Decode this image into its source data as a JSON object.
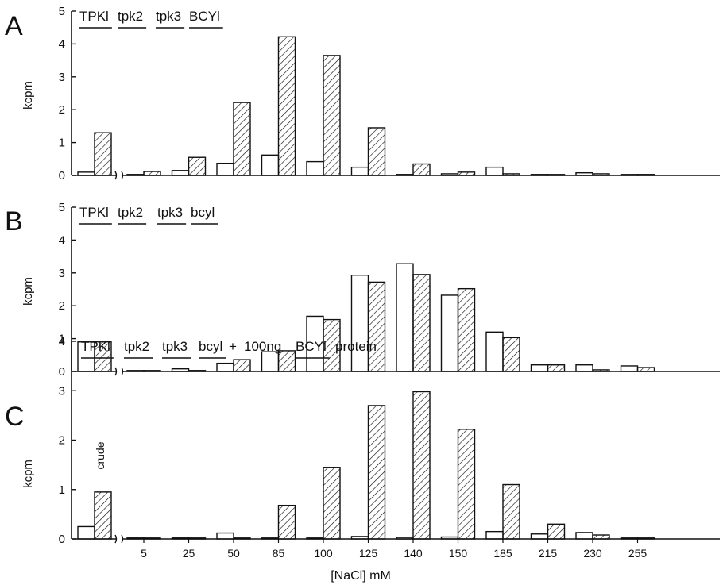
{
  "xlabel": "[NaCl] mM",
  "categories": [
    "crude",
    "5",
    "25",
    "50",
    "85",
    "100",
    "125",
    "140",
    "150",
    "185",
    "215",
    "230",
    "255"
  ],
  "chart_data": [
    {
      "type": "bar",
      "panel": "A",
      "title": "TPKl tpk2 tpk3 BCYl",
      "header": [
        {
          "text": "TPKl",
          "underlined": true
        },
        {
          "text": "tpk2",
          "underlined": true
        },
        {
          "text": "tpk3",
          "underlined": true
        },
        {
          "text": "BCYl",
          "underlined": true
        }
      ],
      "ylabel": "kcpm",
      "ylim": [
        0,
        5
      ],
      "yticks": [
        "0",
        "1",
        "2",
        "3",
        "4",
        "5"
      ],
      "categories": [
        "crude",
        "5",
        "25",
        "50",
        "85",
        "100",
        "125",
        "140",
        "150",
        "185",
        "215",
        "230",
        "255"
      ],
      "series": [
        {
          "style": "open",
          "values": [
            0.1,
            0.03,
            0.15,
            0.37,
            0.62,
            0.42,
            0.25,
            0.03,
            0.05,
            0.25,
            0.03,
            0.08,
            0.01
          ]
        },
        {
          "style": "hatched",
          "values": [
            1.3,
            0.12,
            0.55,
            2.22,
            4.22,
            3.65,
            1.45,
            0.35,
            0.1,
            0.05,
            0.01,
            0.05,
            0.03
          ]
        }
      ],
      "axis_break": "after crude",
      "annotations": []
    },
    {
      "type": "bar",
      "panel": "B",
      "title": "TPKl tpk2 tpk3 bcyl",
      "header": [
        {
          "text": "TPKl",
          "underlined": true
        },
        {
          "text": "tpk2",
          "underlined": true
        },
        {
          "text": "tpk3",
          "underlined": true
        },
        {
          "text": "bcyl",
          "underlined": true
        }
      ],
      "ylabel": "kcpm",
      "ylim": [
        0,
        5
      ],
      "yticks": [
        "0",
        "1",
        "2",
        "3",
        "4",
        "5"
      ],
      "categories": [
        "crude",
        "5",
        "25",
        "50",
        "85",
        "100",
        "125",
        "140",
        "150",
        "185",
        "215",
        "230",
        "255"
      ],
      "series": [
        {
          "style": "open",
          "values": [
            0.9,
            0.02,
            0.08,
            0.25,
            0.6,
            1.68,
            2.93,
            3.28,
            2.32,
            1.2,
            0.2,
            0.2,
            0.17
          ]
        },
        {
          "style": "hatched",
          "values": [
            0.9,
            0.02,
            0.03,
            0.36,
            0.63,
            1.58,
            2.72,
            2.95,
            2.52,
            1.03,
            0.2,
            0.05,
            0.12
          ]
        }
      ],
      "axis_break": "after crude",
      "annotations": []
    },
    {
      "type": "bar",
      "panel": "C",
      "title": "TPKl tpk2 tpk3 bcyl + 100ng BCYl protein",
      "header": [
        {
          "text": "TPKl",
          "underlined": true
        },
        {
          "text": "tpk2",
          "underlined": true
        },
        {
          "text": "tpk3",
          "underlined": true
        },
        {
          "text": "bcyl",
          "underlined": true
        },
        {
          "text": "+",
          "underlined": false
        },
        {
          "text": "100ng",
          "underlined": false
        },
        {
          "text": "BCYl",
          "underlined": true
        },
        {
          "text": "protein",
          "underlined": false
        }
      ],
      "ylabel": "kcpm",
      "ylim": [
        0,
        4
      ],
      "yticks": [
        "0",
        "1",
        "2",
        "3",
        "4"
      ],
      "categories": [
        "crude",
        "5",
        "25",
        "50",
        "85",
        "100",
        "125",
        "140",
        "150",
        "185",
        "215",
        "230",
        "255"
      ],
      "series": [
        {
          "style": "open",
          "values": [
            0.25,
            0.02,
            0.02,
            0.12,
            0.01,
            0.01,
            0.05,
            0.03,
            0.04,
            0.15,
            0.1,
            0.13,
            0.0
          ]
        },
        {
          "style": "hatched",
          "values": [
            0.95,
            0.01,
            0.01,
            0.01,
            0.68,
            1.45,
            2.7,
            2.98,
            2.22,
            1.1,
            0.3,
            0.08,
            0.0
          ]
        }
      ],
      "axis_break": "after crude",
      "annotations": [
        {
          "text": "crude"
        }
      ]
    }
  ]
}
